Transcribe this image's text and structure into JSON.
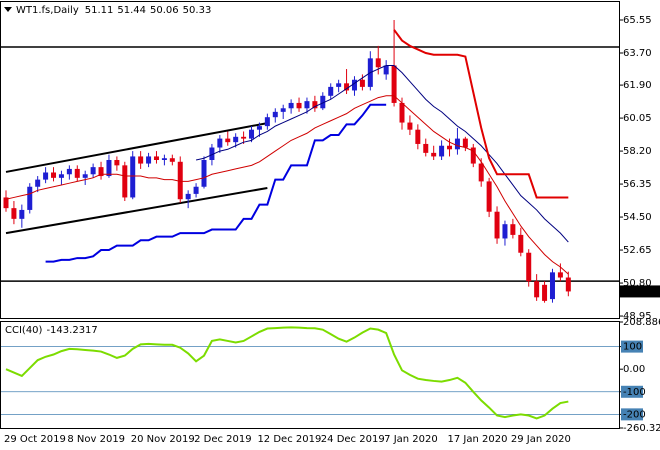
{
  "chart_data": [
    {
      "type": "candlestick",
      "title": "WT1.fs,Daily",
      "categories": [
        "29 Oct 2019",
        null,
        null,
        null,
        null,
        null,
        null,
        null,
        "8 Nov 2019",
        null,
        null,
        null,
        null,
        null,
        null,
        null,
        "20 Nov 2019",
        null,
        null,
        null,
        null,
        null,
        null,
        null,
        "2 Dec 2019",
        null,
        null,
        null,
        null,
        null,
        null,
        null,
        "12 Dec 2019",
        null,
        null,
        null,
        null,
        null,
        null,
        null,
        "24 Dec 2019",
        null,
        null,
        null,
        null,
        null,
        null,
        null,
        "7 Jan 2020",
        null,
        null,
        null,
        null,
        null,
        null,
        null,
        "17 Jan 2020",
        null,
        null,
        null,
        null,
        null,
        null,
        null,
        "29 Jan 2020",
        null,
        null,
        null,
        null,
        null,
        null,
        null
      ],
      "open": [
        55.6,
        55.0,
        54.4,
        54.9,
        56.2,
        56.6,
        57.0,
        56.7,
        56.9,
        57.2,
        56.7,
        56.9,
        57.3,
        56.8,
        57.7,
        57.4,
        55.6,
        57.9,
        57.5,
        57.9,
        57.7,
        57.8,
        57.6,
        55.5,
        55.8,
        56.2,
        57.7,
        58.4,
        58.9,
        58.7,
        59.0,
        58.9,
        59.4,
        59.6,
        60.1,
        60.4,
        60.6,
        60.9,
        60.6,
        61.0,
        60.6,
        61.3,
        61.8,
        62.0,
        61.6,
        62.2,
        61.8,
        63.4,
        62.5,
        63.0,
        60.9,
        59.8,
        59.4,
        58.6,
        58.1,
        57.9,
        58.5,
        58.3,
        58.9,
        58.4,
        57.5,
        56.5,
        54.8,
        53.3,
        54.1,
        53.5,
        52.5,
        50.9,
        50.7,
        49.9,
        51.4,
        51.11
      ],
      "high": [
        56.0,
        55.4,
        55.2,
        56.4,
        56.8,
        57.3,
        57.3,
        57.1,
        57.4,
        57.4,
        57.1,
        57.5,
        57.6,
        58.0,
        57.9,
        57.6,
        58.2,
        58.2,
        58.1,
        58.2,
        58.0,
        58.0,
        57.9,
        56.0,
        56.4,
        57.9,
        58.6,
        59.1,
        59.3,
        59.2,
        59.3,
        59.6,
        59.8,
        60.3,
        60.6,
        60.8,
        61.1,
        61.2,
        61.2,
        61.3,
        61.5,
        62.0,
        62.2,
        62.8,
        62.4,
        62.5,
        63.8,
        64.1,
        63.3,
        65.55,
        61.2,
        60.2,
        59.7,
        58.9,
        58.5,
        58.8,
        58.9,
        59.5,
        59.0,
        58.6,
        57.8,
        56.7,
        55.1,
        54.3,
        54.4,
        53.9,
        52.7,
        51.3,
        50.9,
        51.6,
        51.9,
        51.44
      ],
      "low": [
        54.8,
        54.1,
        53.9,
        54.7,
        55.9,
        56.4,
        56.5,
        56.3,
        56.6,
        56.5,
        56.3,
        56.7,
        56.6,
        56.7,
        57.1,
        55.4,
        55.5,
        57.2,
        57.3,
        57.5,
        57.4,
        57.4,
        55.3,
        55.0,
        55.6,
        56.1,
        57.4,
        58.1,
        58.5,
        58.4,
        58.6,
        58.7,
        59.0,
        59.4,
        59.8,
        60.0,
        60.3,
        60.4,
        60.3,
        60.4,
        60.5,
        61.1,
        61.5,
        61.4,
        61.3,
        61.6,
        61.6,
        62.5,
        62.2,
        60.7,
        59.4,
        59.1,
        58.3,
        57.9,
        57.7,
        57.7,
        57.9,
        58.0,
        58.2,
        57.3,
        56.2,
        54.5,
        53.0,
        52.9,
        53.3,
        52.3,
        50.6,
        49.8,
        49.7,
        49.7,
        50.9,
        50.06
      ],
      "close": [
        55.0,
        54.4,
        54.9,
        56.2,
        56.6,
        57.0,
        56.7,
        56.9,
        57.2,
        56.7,
        56.9,
        57.3,
        56.8,
        57.7,
        57.4,
        55.6,
        57.9,
        57.5,
        57.9,
        57.7,
        57.8,
        57.6,
        55.5,
        55.8,
        56.2,
        57.7,
        58.4,
        58.9,
        58.7,
        59.0,
        58.9,
        59.4,
        59.6,
        60.1,
        60.4,
        60.6,
        60.9,
        60.6,
        61.0,
        60.6,
        61.3,
        61.8,
        62.0,
        61.6,
        62.2,
        61.8,
        63.4,
        62.9,
        63.0,
        60.9,
        59.8,
        59.4,
        58.6,
        58.1,
        57.9,
        58.5,
        58.3,
        58.9,
        58.4,
        57.5,
        56.5,
        54.8,
        53.3,
        54.1,
        53.5,
        52.5,
        50.9,
        50.0,
        49.8,
        51.4,
        51.11,
        50.33
      ],
      "up_color": "#1e1ed2",
      "down_color": "#e00010",
      "lines": [
        {
          "color": "#d00000",
          "width": 1,
          "values": [
            55.5,
            55.6,
            55.7,
            55.8,
            56.0,
            56.1,
            56.2,
            56.3,
            56.4,
            56.5,
            56.6,
            56.7,
            56.9,
            56.9,
            56.9,
            56.8,
            56.8,
            56.8,
            56.7,
            56.7,
            56.6,
            56.6,
            56.5,
            56.5,
            56.6,
            56.7,
            56.9,
            57.0,
            57.1,
            57.2,
            57.3,
            57.4,
            57.6,
            57.9,
            58.2,
            58.5,
            58.8,
            59.0,
            59.2,
            59.5,
            59.7,
            59.9,
            60.1,
            60.3,
            60.6,
            60.8,
            61.0,
            61.2,
            61.3,
            61.3,
            60.9,
            60.5,
            60.1,
            59.7,
            59.3,
            59.0,
            58.7,
            58.5,
            58.4,
            58.2,
            57.6,
            56.9,
            56.2,
            55.4,
            54.7,
            54.0,
            53.4,
            52.9,
            52.4,
            52.0,
            51.7,
            51.3
          ]
        },
        {
          "color": "#000080",
          "width": 1,
          "values": [
            null,
            null,
            null,
            null,
            null,
            null,
            null,
            null,
            null,
            null,
            null,
            null,
            null,
            null,
            null,
            null,
            null,
            null,
            null,
            null,
            null,
            null,
            null,
            null,
            57.7,
            57.8,
            58.0,
            58.2,
            58.3,
            58.5,
            58.7,
            58.8,
            59.1,
            59.3,
            59.6,
            59.8,
            60.0,
            60.2,
            60.4,
            60.7,
            60.9,
            61.1,
            61.4,
            61.7,
            62.0,
            62.3,
            62.6,
            62.8,
            63.0,
            63.0,
            62.6,
            62.1,
            61.6,
            61.1,
            60.7,
            60.4,
            60.0,
            59.6,
            59.3,
            58.9,
            58.5,
            58.0,
            57.5,
            56.9,
            56.3,
            55.7,
            55.3,
            54.9,
            54.4,
            54.0,
            53.6,
            53.1
          ]
        },
        {
          "color": "#0000e0",
          "width": 2,
          "values": [
            null,
            null,
            null,
            null,
            null,
            52.0,
            52.0,
            52.1,
            52.1,
            52.2,
            52.2,
            52.3,
            52.65,
            52.65,
            52.9,
            52.9,
            52.9,
            53.2,
            53.2,
            53.4,
            53.4,
            53.4,
            53.6,
            53.6,
            53.6,
            53.6,
            53.8,
            53.8,
            53.8,
            53.8,
            54.4,
            54.4,
            55.2,
            55.2,
            56.6,
            56.6,
            57.4,
            57.4,
            57.4,
            58.8,
            58.8,
            59.1,
            59.1,
            59.7,
            59.7,
            60.2,
            60.8,
            60.8,
            60.8,
            null,
            null,
            null,
            null,
            null,
            null,
            null,
            null,
            null,
            null,
            null,
            null,
            null,
            null,
            null,
            null,
            null,
            null,
            null,
            null,
            null,
            null,
            null
          ]
        },
        {
          "color": "#e00000",
          "width": 2,
          "values": [
            null,
            null,
            null,
            null,
            null,
            null,
            null,
            null,
            null,
            null,
            null,
            null,
            null,
            null,
            null,
            null,
            null,
            null,
            null,
            null,
            null,
            null,
            null,
            null,
            null,
            null,
            null,
            null,
            null,
            null,
            null,
            null,
            null,
            null,
            null,
            null,
            null,
            null,
            null,
            null,
            null,
            null,
            null,
            null,
            null,
            null,
            null,
            null,
            null,
            65.0,
            64.4,
            64.1,
            63.9,
            63.7,
            63.6,
            63.6,
            63.6,
            63.6,
            63.5,
            61.5,
            59.5,
            57.8,
            56.9,
            56.9,
            56.9,
            56.9,
            56.9,
            55.6,
            55.6,
            55.6,
            55.6,
            55.6
          ]
        }
      ],
      "hlines": [
        64.04,
        50.91
      ],
      "trendlines": [
        {
          "x": [
            0,
            33
          ],
          "y": [
            57.03,
            59.77
          ]
        },
        {
          "x": [
            0,
            33
          ],
          "y": [
            53.6,
            56.13
          ]
        }
      ],
      "ylim": [
        48.84,
        66.56
      ],
      "yticks": [
        65.55,
        {
          "value": 63.7,
          "label": "63.70"
        },
        {
          "value": 61.9,
          "label": "61.90"
        },
        60.05,
        {
          "value": 58.2,
          "label": "58.20"
        },
        56.35,
        {
          "value": 54.5,
          "label": "54.50"
        },
        52.65,
        {
          "value": 50.8,
          "label": "50.80"
        },
        48.95
      ]
    },
    {
      "type": "line",
      "title": "CCI(40)",
      "series": [
        {
          "color": "#7cdc00",
          "values": [
            0,
            -15,
            -30,
            5,
            40,
            55,
            65,
            80,
            90,
            88,
            85,
            82,
            78,
            65,
            50,
            60,
            90,
            110,
            112,
            110,
            108,
            108,
            95,
            70,
            35,
            60,
            125,
            132,
            125,
            118,
            125,
            145,
            165,
            180,
            182,
            184,
            185,
            184,
            182,
            181,
            175,
            155,
            135,
            122,
            140,
            162,
            180,
            175,
            160,
            65,
            -5,
            -25,
            -42,
            -48,
            -52,
            -55,
            -48,
            -38,
            -60,
            -100,
            -138,
            -170,
            -205,
            -212,
            -205,
            -200,
            -205,
            -218,
            -205,
            -175,
            -150,
            -143.2317
          ]
        }
      ],
      "levels": [
        100,
        -100,
        -200
      ],
      "level_color": "#4682b4",
      "ylim": [
        -260.322,
        208.8864
      ],
      "yticks": [
        208.8864,
        100,
        {
          "value": 0,
          "label": "0.00"
        },
        -100,
        -200,
        -260.322
      ]
    }
  ]
}
